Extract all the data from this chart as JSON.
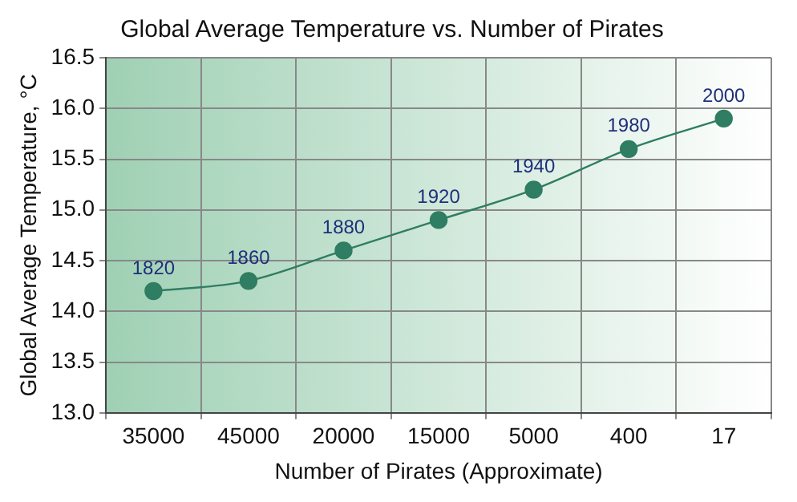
{
  "chart_data": {
    "type": "line",
    "title": "Global Average Temperature vs. Number of Pirates",
    "xlabel": "Number of Pirates (Approximate)",
    "ylabel": "Global Average Temperature, °C",
    "categories": [
      "35000",
      "45000",
      "20000",
      "15000",
      "5000",
      "400",
      "17"
    ],
    "series": [
      {
        "color": "#2f7d62",
        "values": [
          14.2,
          14.3,
          14.6,
          14.9,
          15.2,
          15.6,
          15.9
        ]
      }
    ],
    "ylim": [
      13.0,
      16.5
    ],
    "yticks": [
      {
        "value": 13,
        "label": "13.0"
      },
      {
        "value": 13.5,
        "label": "13.5"
      },
      {
        "value": 14,
        "label": "14.0"
      },
      {
        "value": 14.5,
        "label": "14.5"
      },
      {
        "value": 15,
        "label": "15.0"
      },
      {
        "value": 15.5,
        "label": "15.5"
      },
      {
        "value": 16,
        "label": "16.0"
      },
      {
        "value": 16.5,
        "label": "16.5"
      }
    ],
    "grid": true,
    "marker": "circle",
    "line_style": "solid",
    "annotations": [
      {
        "text": "1820",
        "x": "35000",
        "y": 14.2
      },
      {
        "text": "1860",
        "x": "45000",
        "y": 14.3
      },
      {
        "text": "1880",
        "x": "20000",
        "y": 14.6
      },
      {
        "text": "1920",
        "x": "15000",
        "y": 14.9
      },
      {
        "text": "1940",
        "x": "5000",
        "y": 15.2
      },
      {
        "text": "1980",
        "x": "400",
        "y": 15.6
      },
      {
        "text": "2000",
        "x": "17",
        "y": 15.9
      }
    ]
  }
}
